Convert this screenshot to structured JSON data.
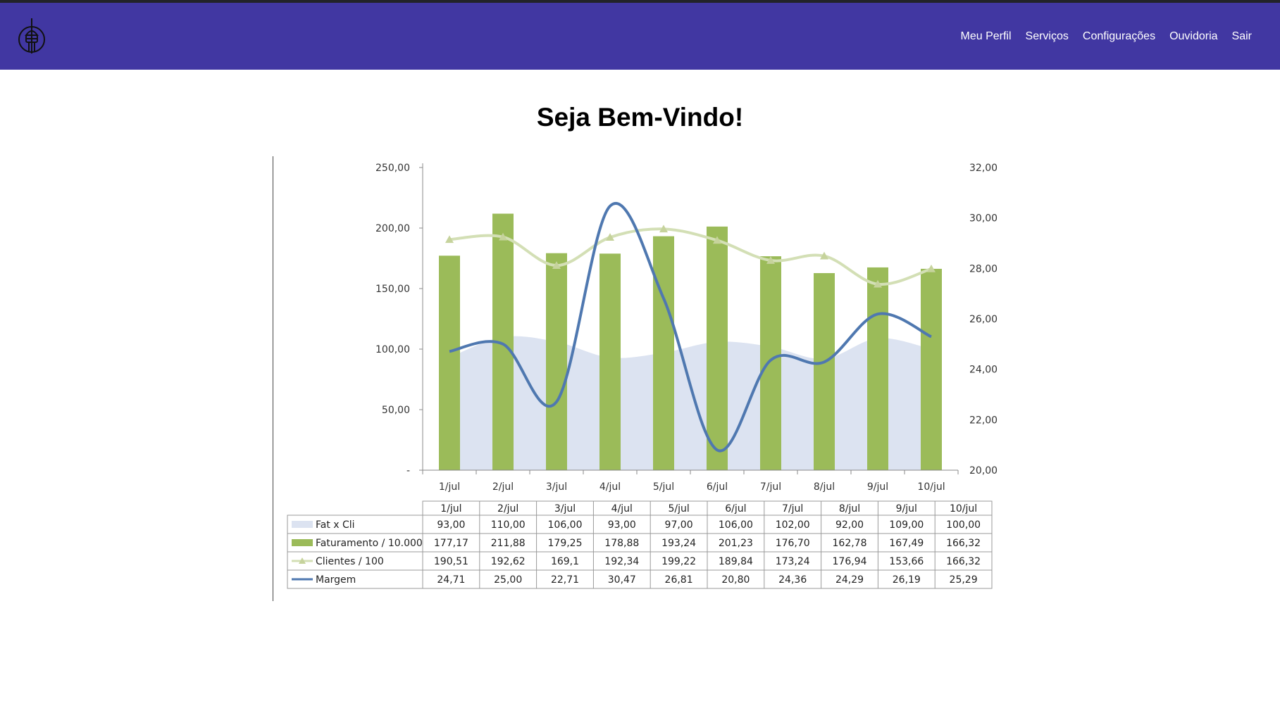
{
  "nav": {
    "logo_icon": "tower-logo-icon",
    "links": [
      "Meu Perfil",
      "Serviços",
      "Configurações",
      "Ouvidoria",
      "Sair"
    ]
  },
  "page": {
    "title": "Seja Bem-Vindo!"
  },
  "chart_data": {
    "type": "bar",
    "categories": [
      "1/jul",
      "2/jul",
      "3/jul",
      "4/jul",
      "5/jul",
      "6/jul",
      "7/jul",
      "8/jul",
      "9/jul",
      "10/jul"
    ],
    "y_left": {
      "min": 0,
      "max": 250,
      "ticks": [
        "-",
        "50,00",
        "100,00",
        "150,00",
        "200,00",
        "250,00"
      ]
    },
    "y_right": {
      "min": 20,
      "max": 32,
      "ticks": [
        "20,00",
        "22,00",
        "24,00",
        "26,00",
        "28,00",
        "30,00",
        "32,00"
      ]
    },
    "series": [
      {
        "name": "Fat x Cli",
        "type": "area",
        "axis": "left",
        "color": "#dce3f1",
        "values": [
          93.0,
          110.0,
          106.0,
          93.0,
          97.0,
          106.0,
          102.0,
          92.0,
          109.0,
          100.0
        ],
        "labels": [
          "93,00",
          "110,00",
          "106,00",
          "93,00",
          "97,00",
          "106,00",
          "102,00",
          "92,00",
          "109,00",
          "100,00"
        ]
      },
      {
        "name": "Faturamento / 10.000",
        "type": "bar",
        "axis": "left",
        "color": "#9bbb59",
        "values": [
          177.17,
          211.88,
          179.25,
          178.88,
          193.24,
          201.23,
          176.7,
          162.78,
          167.49,
          166.32
        ],
        "labels": [
          "177,17",
          "211,88",
          "179,25",
          "178,88",
          "193,24",
          "201,23",
          "176,70",
          "162,78",
          "167,49",
          "166,32"
        ]
      },
      {
        "name": "Clientes / 100",
        "type": "line",
        "axis": "left",
        "color": "#d3dfb5",
        "values": [
          190.51,
          192.62,
          169.1,
          192.34,
          199.22,
          189.84,
          173.24,
          176.94,
          153.66,
          166.32
        ],
        "labels": [
          "190,51",
          "192,62",
          "169,1",
          "192,34",
          "199,22",
          "189,84",
          "173,24",
          "176,94",
          "153,66",
          "166,32"
        ]
      },
      {
        "name": "Margem",
        "type": "line",
        "axis": "right",
        "color": "#4f78b0",
        "values": [
          24.71,
          25.0,
          22.71,
          30.47,
          26.81,
          20.8,
          24.36,
          24.29,
          26.19,
          25.29
        ],
        "labels": [
          "24,71",
          "25,00",
          "22,71",
          "30,47",
          "26,81",
          "20,80",
          "24,36",
          "24,29",
          "26,19",
          "25,29"
        ]
      }
    ]
  }
}
